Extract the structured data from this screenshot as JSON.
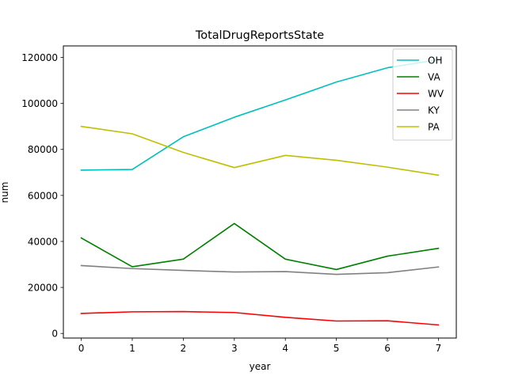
{
  "chart_data": {
    "type": "line",
    "title": "TotalDrugReportsState",
    "xlabel": "year",
    "ylabel": "num",
    "x": [
      0,
      1,
      2,
      3,
      4,
      5,
      6,
      7
    ],
    "xlim": [
      -0.35,
      7.35
    ],
    "ylim": [
      -2000,
      125000
    ],
    "xticks": [
      0,
      1,
      2,
      3,
      4,
      5,
      6,
      7
    ],
    "yticks": [
      0,
      20000,
      40000,
      60000,
      80000,
      100000,
      120000
    ],
    "grid": false,
    "legend_placement": "top-right",
    "series": [
      {
        "name": "OH",
        "color": "#00bfbf",
        "values": [
          71000,
          71300,
          85500,
          94000,
          101500,
          109300,
          115500,
          119000
        ]
      },
      {
        "name": "VA",
        "color": "#008000",
        "values": [
          41500,
          29000,
          32300,
          47800,
          32300,
          27800,
          33600,
          37000
        ]
      },
      {
        "name": "WV",
        "color": "#ff0000",
        "values": [
          8700,
          9400,
          9500,
          9100,
          7000,
          5400,
          5500,
          3700
        ]
      },
      {
        "name": "KY",
        "color": "#808080",
        "values": [
          29500,
          28200,
          27400,
          26700,
          26900,
          25700,
          26400,
          28900
        ]
      },
      {
        "name": "PA",
        "color": "#bfbf00",
        "values": [
          90000,
          86800,
          78700,
          72100,
          77400,
          75300,
          72300,
          68800
        ]
      }
    ]
  }
}
